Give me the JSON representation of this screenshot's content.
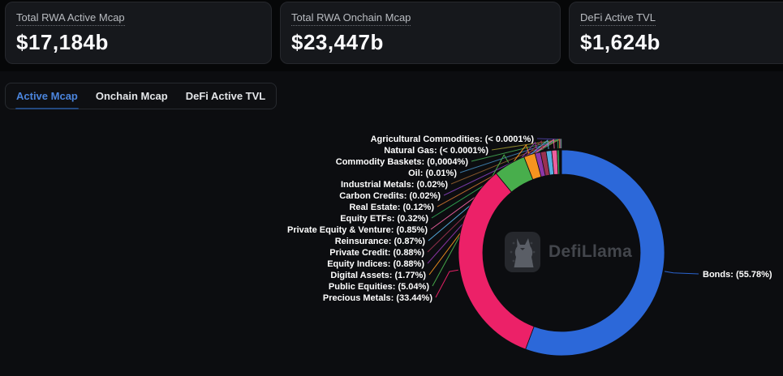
{
  "stats": [
    {
      "label": "Total RWA Active Mcap",
      "value": "$17,184b"
    },
    {
      "label": "Total RWA Onchain Mcap",
      "value": "$23,447b"
    },
    {
      "label": "DeFi Active TVL",
      "value": "$1,624b"
    }
  ],
  "tabs": [
    {
      "label": "Active Mcap",
      "active": true
    },
    {
      "label": "Onchain Mcap",
      "active": false
    },
    {
      "label": "DeFi Active TVL",
      "active": false
    }
  ],
  "watermark": {
    "text": "DefiLlama",
    "icon": "llama-logo-icon"
  },
  "colors": {
    "accent_blue": "#4b85dd",
    "page_bg": "#060708",
    "section_bg": "#0c0d10",
    "card_bg": "#16181c",
    "card_border": "#26282d"
  },
  "chart_data": {
    "type": "pie",
    "donut": true,
    "title": "",
    "legend_position": "none",
    "start_angle_deg_from_top": 0,
    "direction": "clockwise",
    "slices": [
      {
        "name": "Bonds",
        "display": "Bonds: (55.78%)",
        "value": 55.78,
        "color": "#2c68d9"
      },
      {
        "name": "Precious Metals",
        "display": "Precious Metals: (33.44%)",
        "value": 33.44,
        "color": "#ec2168"
      },
      {
        "name": "Public Equities",
        "display": "Public Equities: (5.04%)",
        "value": 5.04,
        "color": "#48ae4c"
      },
      {
        "name": "Digital Assets",
        "display": "Digital Assets: (1.77%)",
        "value": 1.77,
        "color": "#f5941f"
      },
      {
        "name": "Equity Indices",
        "display": "Equity Indices: (0.88%)",
        "value": 0.88,
        "color": "#8d36a8"
      },
      {
        "name": "Private Credit",
        "display": "Private Credit: (0.88%)",
        "value": 0.88,
        "color": "#993150"
      },
      {
        "name": "Reinsurance",
        "display": "Reinsurance: (0.87%)",
        "value": 0.87,
        "color": "#56aee2"
      },
      {
        "name": "Private Equity & Venture",
        "display": "Private Equity & Venture: (0.85%)",
        "value": 0.85,
        "color": "#ec5f9e"
      },
      {
        "name": "Equity ETFs",
        "display": "Equity ETFs: (0.32%)",
        "value": 0.32,
        "color": "#2ea352"
      },
      {
        "name": "Real Estate",
        "display": "Real Estate: (0.12%)",
        "value": 0.12,
        "color": "#bd6b2d"
      },
      {
        "name": "Carbon Credits",
        "display": "Carbon Credits: (0.02%)",
        "value": 0.02,
        "color": "#7c3cad"
      },
      {
        "name": "Industrial Metals",
        "display": "Industrial Metals: (0.02%)",
        "value": 0.02,
        "color": "#8a5a2c"
      },
      {
        "name": "Oil",
        "display": "Oil: (0.01%)",
        "value": 0.01,
        "color": "#3f7fae"
      },
      {
        "name": "Commodity Baskets",
        "display": "Commodity Baskets: (0,0004%)",
        "value": 0.0004,
        "color": "#3f9e4f"
      },
      {
        "name": "Natural Gas",
        "display": "Natural Gas: (< 0.0001%)",
        "value": 0.0001,
        "color": "#8f8a2e"
      },
      {
        "name": "Agricultural Commodities",
        "display": "Agricultural Commodities: (< 0.0001%)",
        "value": 0.0001,
        "color": "#4d3f9e"
      }
    ]
  }
}
